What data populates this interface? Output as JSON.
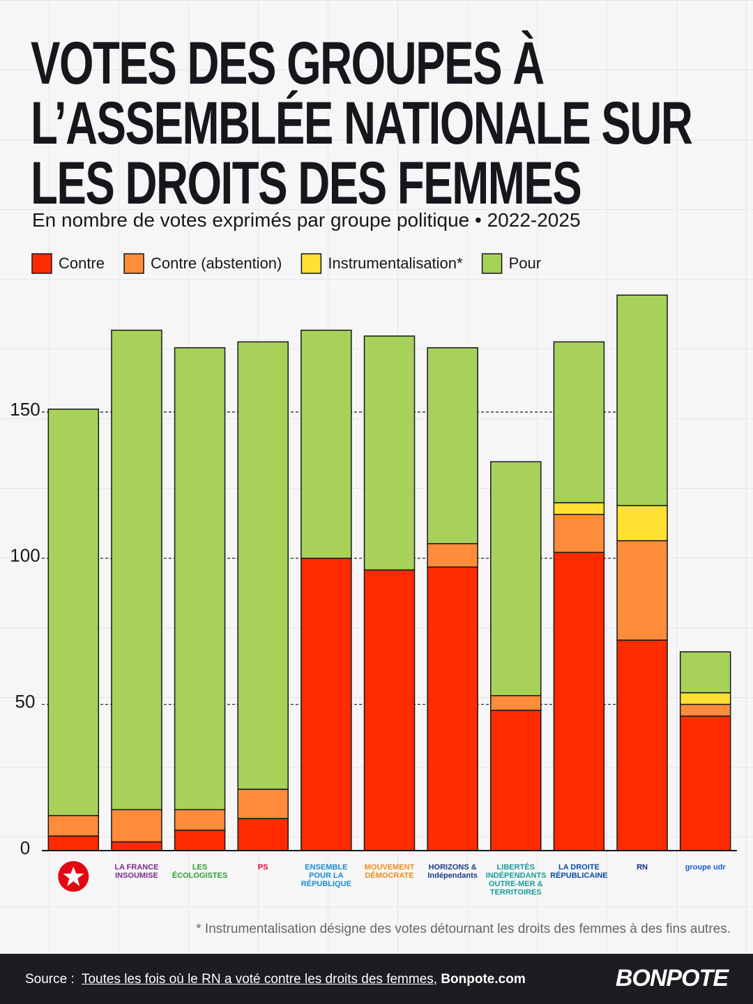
{
  "chart_data": {
    "type": "stacked-bar",
    "title": "VOTES DES GROUPES À L’ASSEMBLÉE NATIONALE SUR LES DROITS DES FEMMES",
    "subtitle": "En nombre de votes exprimés par groupe politique • 2022-2025",
    "categories": [
      null,
      "LA FRANCE INSOUMISE",
      "LES ÉCOLOGISTES",
      "PS",
      "ENSEMBLE POUR LA RÉPUBLIQUE",
      "MOUVEMENT DÉMOCRATE",
      "HORIZONS & Indépendants",
      "LIBERTÉS INDÉPENDANTS OUTRE-MER & TERRITOIRES",
      "LA DROITE RÉPUBLICAINE",
      "RN",
      "groupe udr"
    ],
    "series": [
      {
        "name": "Contre",
        "color": "#ff2a00",
        "values": [
          5,
          3,
          7,
          11,
          100,
          96,
          97,
          48,
          102,
          72,
          46
        ]
      },
      {
        "name": "Contre (abstention)",
        "color": "#ff8c3a",
        "values": [
          7,
          11,
          7,
          10,
          0,
          0,
          8,
          5,
          13,
          34,
          4
        ]
      },
      {
        "name": "Instrumentalisation*",
        "color": "#ffe033",
        "values": [
          0,
          0,
          0,
          0,
          0,
          0,
          0,
          0,
          4,
          12,
          4
        ]
      },
      {
        "name": "Pour",
        "color": "#a8d15a",
        "values": [
          139,
          164,
          158,
          153,
          78,
          80,
          67,
          80,
          55,
          72,
          14
        ]
      }
    ],
    "ylim": [
      0,
      200
    ],
    "yticks": [
      0,
      50,
      100,
      150
    ],
    "grid": true,
    "footnote": "* Instrumentalisation désigne des votes détournant les droits des femmes à des fins autres.",
    "source": {
      "label": "Source :",
      "link": "Toutes les fois où le RN a voté contre les droits des femmes",
      "separator": ",",
      "site": "Bonpote.com"
    },
    "brand": "BONPOTE"
  }
}
